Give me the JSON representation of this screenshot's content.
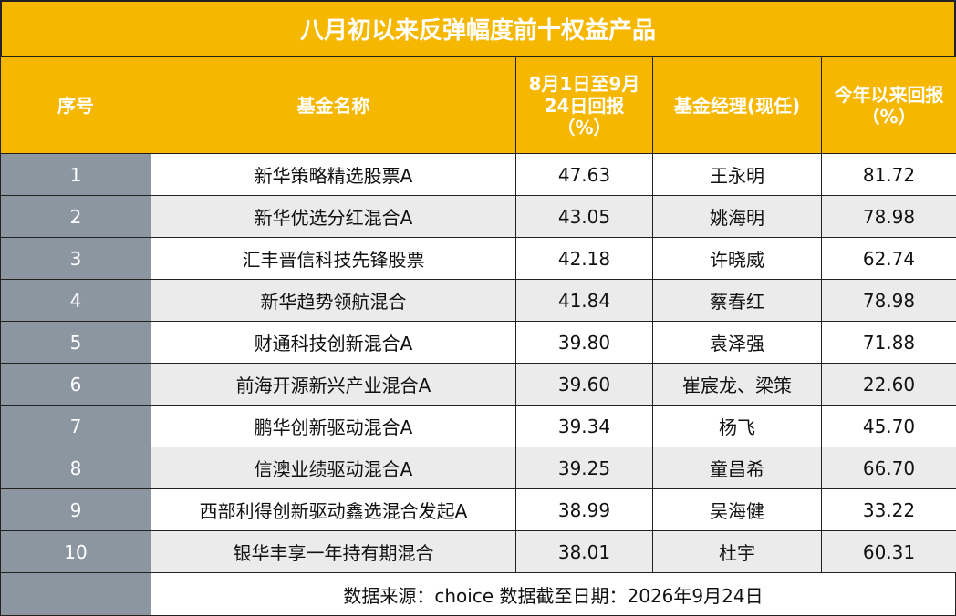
{
  "title": "八月初以来反弹幅度前十权益产品",
  "table": {
    "header": [
      "序号",
      "基金名称",
      "8月1日至9月24日回报（%）",
      "基金经理(现任)",
      "今年以来回报（%）"
    ],
    "rows": [
      [
        "1",
        "新华策略精选股票A",
        "47.63",
        "王永明",
        "81.72"
      ],
      [
        "2",
        "新华优选分红混合A",
        "43.05",
        "姚海明",
        "78.98"
      ],
      [
        "3",
        "汇丰晋信科技先锋股票",
        "42.18",
        "许晓威",
        "62.74"
      ],
      [
        "4",
        "新华趋势领航混合",
        "41.84",
        "蔡春红",
        "78.98"
      ],
      [
        "5",
        "财通科技创新混合A",
        "39.80",
        "袁泽强",
        "71.88"
      ],
      [
        "6",
        "前海开源新兴产业混合A",
        "39.60",
        "崔宸龙、梁策",
        "22.60"
      ],
      [
        "7",
        "鹏华创新驱动混合A",
        "39.34",
        "杨飞",
        "45.70"
      ],
      [
        "8",
        "信澳业绩驱动混合A",
        "39.25",
        "童昌希",
        "66.70"
      ],
      [
        "9",
        "西部利得创新驱动鑫选混合发起A",
        "38.99",
        "吴海健",
        "33.22"
      ],
      [
        "10",
        "银华丰享一年持有期混合",
        "38.01",
        "杜宇",
        "60.31"
      ]
    ],
    "footer": "数据来源：choice  数据截至日期：2026年9月24日"
  }
}
